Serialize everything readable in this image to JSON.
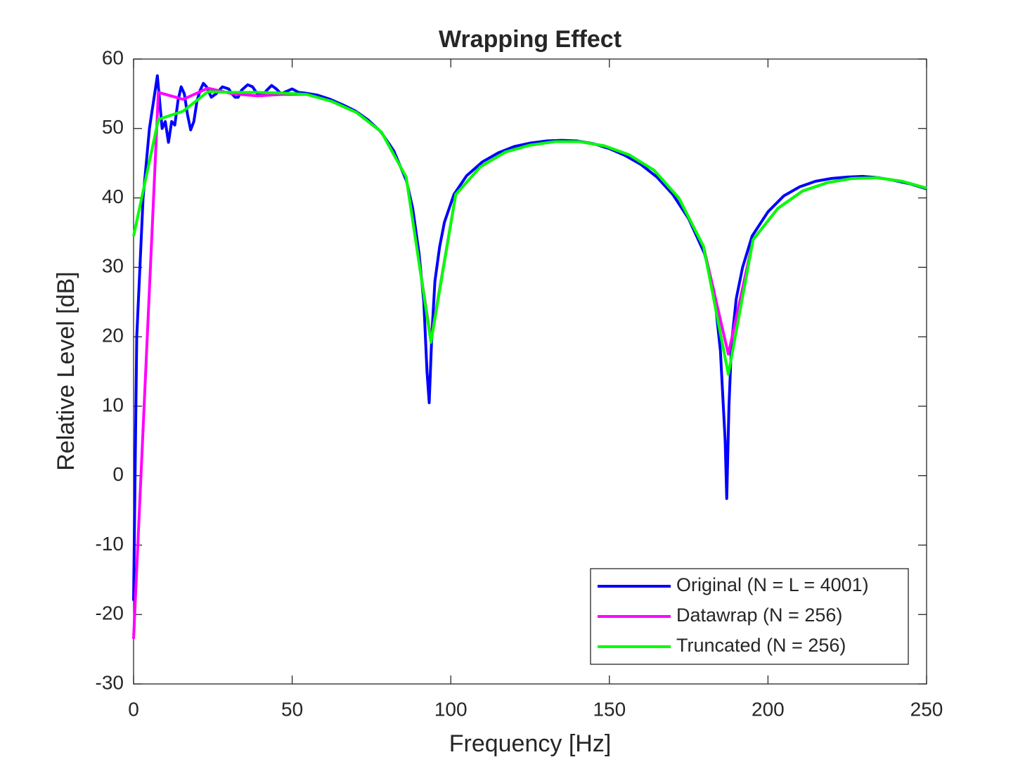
{
  "chart_data": {
    "type": "line",
    "title": "Wrapping Effect",
    "x_label": "Frequency [Hz]",
    "y_label": "Relative Level [dB]",
    "xlim": [
      0,
      250
    ],
    "ylim": [
      -30,
      60
    ],
    "xticks": [
      0,
      50,
      100,
      150,
      200,
      250
    ],
    "yticks": [
      -30,
      -20,
      -10,
      0,
      10,
      20,
      30,
      40,
      50,
      60
    ],
    "grid": false,
    "legend": "lower right",
    "series": [
      {
        "name": "Original (N = L = 4001)",
        "color": "#0000ff",
        "x": [
          0,
          1,
          3,
          5,
          7.5,
          9,
          10,
          11,
          12,
          13,
          14,
          15,
          16,
          17,
          18,
          19,
          20,
          21,
          22,
          23,
          24.5,
          26,
          27,
          28,
          30,
          31,
          32,
          33,
          34,
          36,
          37.5,
          39,
          40.5,
          42,
          43.5,
          45,
          46.5,
          48,
          50,
          52,
          54,
          58,
          62,
          66,
          70,
          74,
          78,
          82,
          86,
          88,
          90,
          91.5,
          92.5,
          93.2,
          94,
          95,
          96.5,
          98,
          101,
          105,
          110,
          115,
          120,
          125,
          130,
          135,
          140,
          145,
          150,
          155,
          160,
          165,
          170,
          175,
          180,
          183,
          185,
          186.5,
          187,
          187.7,
          188.5,
          190,
          192,
          195,
          200,
          205,
          210,
          215,
          220,
          225,
          230,
          235,
          240,
          245,
          250
        ],
        "values": [
          -18,
          20,
          40,
          50,
          57.6,
          50,
          51,
          48,
          51,
          50.5,
          54,
          56,
          55,
          52,
          49.8,
          51,
          54,
          55.5,
          56.5,
          56,
          54.5,
          55,
          55.5,
          56,
          55.7,
          55,
          54.5,
          54.5,
          55.5,
          56.3,
          56,
          55,
          54.7,
          55.5,
          56.2,
          55.7,
          55,
          55.3,
          55.7,
          55.2,
          55.1,
          54.8,
          54.2,
          53.4,
          52.5,
          51.2,
          49.5,
          46.8,
          42.5,
          38.5,
          32,
          25,
          15,
          10.5,
          20,
          28,
          33,
          36.5,
          40.5,
          43.2,
          45.2,
          46.5,
          47.4,
          47.9,
          48.2,
          48.3,
          48.2,
          47.8,
          47.1,
          46.1,
          44.8,
          43,
          40.5,
          37,
          32,
          26.5,
          18,
          5,
          -3.3,
          10,
          19,
          25.5,
          30,
          34.5,
          38,
          40.3,
          41.6,
          42.4,
          42.8,
          43,
          43.1,
          42.9,
          42.5,
          42,
          41.3
        ]
      },
      {
        "name": "Datawrap (N = 256)",
        "color": "#ff00ff",
        "x": [
          0,
          7.8125,
          15.625,
          23.4375,
          31.25,
          39.0625,
          46.875,
          54.6875,
          62.5,
          70.3125,
          78.125,
          85.9375,
          93.75,
          101.5625,
          109.375,
          117.1875,
          125,
          132.8125,
          140.625,
          148.4375,
          156.25,
          164.0625,
          171.875,
          179.6875,
          187.5,
          195.3125,
          203.125,
          210.9375,
          218.75,
          226.5625,
          234.375,
          242.1875,
          250
        ],
        "values": [
          -23.5,
          55.2,
          54.2,
          55.8,
          55,
          54.7,
          54.9,
          54.9,
          53.9,
          52.3,
          49.5,
          43,
          19.5,
          40.5,
          44.5,
          46.6,
          47.6,
          48.1,
          48.1,
          47.5,
          46.2,
          44,
          40,
          33,
          17.5,
          34,
          38.5,
          41,
          42.2,
          42.8,
          42.9,
          42.4,
          41.4
        ]
      },
      {
        "name": "Truncated (N = 256)",
        "color": "#00ff00",
        "x": [
          0,
          7.8125,
          15.625,
          23.4375,
          31.25,
          39.0625,
          46.875,
          54.6875,
          62.5,
          70.3125,
          78.125,
          85.9375,
          93.75,
          101.5625,
          109.375,
          117.1875,
          125,
          132.8125,
          140.625,
          148.4375,
          156.25,
          164.0625,
          171.875,
          179.6875,
          187.5,
          195.3125,
          203.125,
          210.9375,
          218.75,
          226.5625,
          234.375,
          242.1875,
          250
        ],
        "values": [
          34.5,
          51.3,
          52.5,
          55.3,
          55.2,
          55.2,
          55.1,
          54.9,
          53.9,
          52.3,
          49.5,
          43,
          19.2,
          40.5,
          44.5,
          46.6,
          47.6,
          48.1,
          48.1,
          47.5,
          46.2,
          44,
          40,
          33,
          14.6,
          34,
          38.5,
          41,
          42.2,
          42.8,
          42.9,
          42.4,
          41.4
        ]
      }
    ]
  }
}
